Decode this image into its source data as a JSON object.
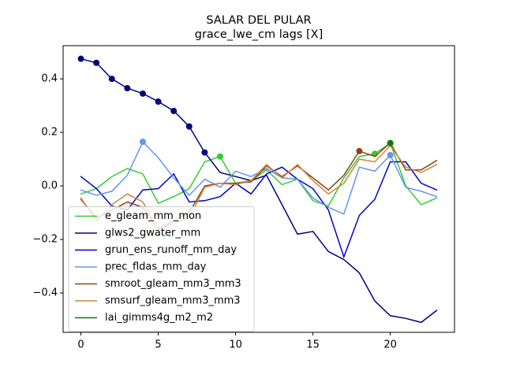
{
  "chart_data": {
    "type": "line",
    "title": "SALAR DEL PULAR",
    "subtitle": "grace_lwe_cm lags [X]",
    "x": [
      0,
      1,
      2,
      3,
      4,
      5,
      6,
      7,
      8,
      9,
      10,
      11,
      12,
      13,
      14,
      15,
      16,
      17,
      18,
      19,
      20,
      21,
      22,
      23
    ],
    "xlim": [
      -1.15,
      24.15
    ],
    "xticks": [
      0,
      5,
      10,
      15,
      20
    ],
    "ylim": [
      -0.547,
      0.524
    ],
    "yticks": [
      {
        "value": -0.4,
        "label": "−0.4"
      },
      {
        "value": -0.2,
        "label": "−0.2"
      },
      {
        "value": 0,
        "label": "0.0"
      },
      0.2,
      0.4
    ],
    "legend": "lower left",
    "series": [
      {
        "name": "e_gleam_mm_mon",
        "color": "#32cd32",
        "markers": [
          9,
          19
        ],
        "values": [
          -0.03,
          -0.01,
          0.035,
          0.065,
          0.045,
          -0.065,
          -0.04,
          -0.01,
          0.09,
          0.11,
          0.01,
          0.02,
          0.06,
          0.005,
          0.025,
          -0.055,
          -0.075,
          0.03,
          0.11,
          0.12,
          0.16,
          0.0,
          -0.07,
          -0.045
        ]
      },
      {
        "name": "glws2_gwater_mm",
        "color": "#000080",
        "markers": [
          0,
          1,
          2,
          3,
          4,
          5,
          6,
          7,
          8
        ],
        "values": [
          0.475,
          0.46,
          0.4,
          0.365,
          0.345,
          0.315,
          0.28,
          0.222,
          0.125,
          0.05,
          0.035,
          0.02,
          0.04,
          -0.07,
          -0.18,
          -0.17,
          -0.245,
          -0.275,
          -0.325,
          -0.43,
          -0.485,
          -0.495,
          -0.51,
          -0.465
        ]
      },
      {
        "name": "grun_ens_runoff_mm_day",
        "color": "#0000cd",
        "markers": [],
        "values": [
          0.035,
          -0.01,
          -0.075,
          -0.09,
          -0.015,
          -0.01,
          0.045,
          -0.06,
          -0.055,
          -0.04,
          0.01,
          -0.03,
          0.045,
          0.07,
          0.025,
          -0.01,
          -0.09,
          -0.265,
          -0.11,
          -0.05,
          0.09,
          0.09,
          0.01,
          -0.015
        ]
      },
      {
        "name": "prec_fldas_mm_day",
        "color": "#6495ed",
        "markers": [
          4,
          20
        ],
        "values": [
          -0.015,
          -0.035,
          -0.02,
          0.04,
          0.165,
          0.105,
          0.03,
          -0.035,
          0.025,
          -0.005,
          0.055,
          0.035,
          0.065,
          0.03,
          0.025,
          -0.045,
          -0.08,
          -0.105,
          0.07,
          0.055,
          0.115,
          -0.005,
          -0.02,
          -0.04
        ]
      },
      {
        "name": "smroot_gleam_mm3_mm3",
        "color": "#8b4513",
        "markers": [
          18,
          20
        ],
        "values": [
          -0.05,
          -0.12,
          -0.09,
          -0.06,
          -0.08,
          -0.16,
          -0.13,
          -0.1,
          0.0,
          0.01,
          0.01,
          0.015,
          0.075,
          0.035,
          0.075,
          0.03,
          -0.015,
          0.04,
          0.13,
          0.11,
          0.16,
          0.06,
          0.06,
          0.095
        ]
      },
      {
        "name": "smsurf_gleam_mm3_mm3",
        "color": "#cd853f",
        "markers": [],
        "values": [
          -0.045,
          -0.13,
          -0.07,
          -0.03,
          -0.06,
          -0.16,
          -0.14,
          -0.12,
          -0.005,
          0.01,
          0.005,
          0.02,
          0.08,
          0.03,
          0.08,
          0.02,
          -0.03,
          0.01,
          0.1,
          0.09,
          0.15,
          0.07,
          0.05,
          0.08
        ]
      },
      {
        "name": "lai_gimms4g_m2_m2",
        "color": "#008000",
        "markers": [
          20
        ],
        "values": [
          null,
          null,
          null,
          null,
          null,
          null,
          null,
          null,
          null,
          null,
          null,
          null,
          null,
          null,
          null,
          null,
          null,
          null,
          null,
          null,
          0.16,
          null,
          null,
          null
        ]
      }
    ]
  }
}
